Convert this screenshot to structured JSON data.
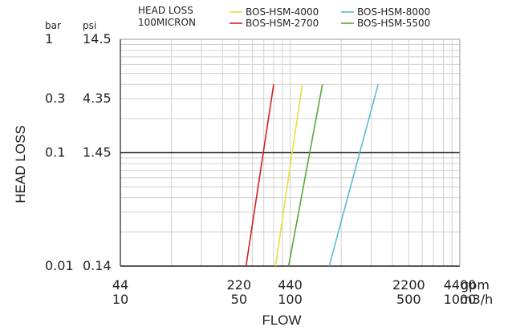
{
  "chart_data": {
    "type": "line",
    "title": "HEAD LOSS",
    "subtitle": "100MICRON",
    "xlabel": "FLOW",
    "ylabel": "HEAD LOSS",
    "scale": {
      "x": "log",
      "y": "log"
    },
    "grid": true,
    "legend_position": "top",
    "xlim_m3h": [
      10,
      1000
    ],
    "ylim_bar": [
      0.01,
      1
    ],
    "y_units": {
      "primary": "bar",
      "secondary": "psi"
    },
    "x_units": {
      "primary": "gpm",
      "secondary": "m3/h"
    },
    "y_unit_headers": {
      "bar": "bar",
      "psi": "psi"
    },
    "x_unit_headers": {
      "gpm": "gpm",
      "m3h": "m3/h"
    },
    "y_ticks": [
      {
        "bar": 1,
        "bar_label": "1",
        "psi_label": "14.5"
      },
      {
        "bar": 0.3,
        "bar_label": "0.3",
        "psi_label": "4.35"
      },
      {
        "bar": 0.1,
        "bar_label": "0.1",
        "psi_label": "1.45"
      },
      {
        "bar": 0.01,
        "bar_label": "0.01",
        "psi_label": "0.14"
      }
    ],
    "x_ticks": [
      {
        "m3h": 10,
        "gpm_label": "44",
        "m3h_label": "10"
      },
      {
        "m3h": 50,
        "gpm_label": "220",
        "m3h_label": "50"
      },
      {
        "m3h": 100,
        "gpm_label": "440",
        "m3h_label": "100"
      },
      {
        "m3h": 500,
        "gpm_label": "2200",
        "m3h_label": "500"
      },
      {
        "m3h": 1000,
        "gpm_label": "4400",
        "m3h_label": "1000"
      }
    ],
    "series": [
      {
        "name": "BOS-HSM-4000",
        "color": "#e8e040",
        "points": [
          [
            82,
            0.01
          ],
          [
            118,
            0.4
          ]
        ]
      },
      {
        "name": "BOS-HSM-2700",
        "color": "#d42020",
        "points": [
          [
            55,
            0.01
          ],
          [
            80,
            0.4
          ]
        ]
      },
      {
        "name": "BOS-HSM-8000",
        "color": "#5bbccc",
        "points": [
          [
            170,
            0.01
          ],
          [
            330,
            0.4
          ]
        ]
      },
      {
        "name": "BOS-HSM-5500",
        "color": "#5aa83a",
        "points": [
          [
            98,
            0.01
          ],
          [
            155,
            0.4
          ]
        ]
      }
    ]
  }
}
